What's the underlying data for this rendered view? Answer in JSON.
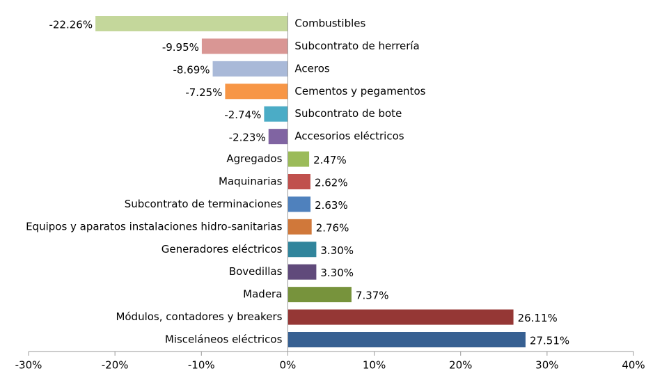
{
  "chart_data": {
    "type": "bar",
    "orientation": "horizontal",
    "categories": [
      "Combustibles",
      "Subcontrato de herrería",
      "Aceros",
      "Cementos y pegamentos",
      "Subcontrato de bote",
      "Accesorios eléctricos",
      "Agregados",
      "Maquinarias",
      "Subcontrato de terminaciones",
      "Equipos y aparatos instalaciones hidro-sanitarias",
      "Generadores eléctricos",
      "Bovedillas",
      "Madera",
      "Módulos, contadores y breakers",
      "Misceláneos eléctricos"
    ],
    "values": [
      -22.26,
      -9.95,
      -8.69,
      -7.25,
      -2.74,
      -2.23,
      2.47,
      2.62,
      2.63,
      2.76,
      3.3,
      3.3,
      7.37,
      26.11,
      27.51
    ],
    "value_labels": [
      "-22.26%",
      "-9.95%",
      "-8.69%",
      "-7.25%",
      "-2.74%",
      "-2.23%",
      "2.47%",
      "2.62%",
      "2.63%",
      "2.76%",
      "3.30%",
      "3.30%",
      "7.37%",
      "26.11%",
      "27.51%"
    ],
    "colors": [
      "#c4d79b",
      "#d99694",
      "#a9b9d8",
      "#f79646",
      "#4bacc6",
      "#8064a2",
      "#9bbb59",
      "#c0504d",
      "#4f81bd",
      "#d0783a",
      "#31859c",
      "#604a7b",
      "#77933c",
      "#953735",
      "#376092"
    ],
    "xlim": [
      -30,
      40
    ],
    "xticks": [
      {
        "value": -30,
        "label": "-30%"
      },
      {
        "value": -20,
        "label": "-20%"
      },
      {
        "value": -10,
        "label": "-10%"
      },
      {
        "value": 0,
        "label": "0%"
      },
      {
        "value": 10,
        "label": "10%"
      },
      {
        "value": 20,
        "label": "20%"
      },
      {
        "value": 30,
        "label": "30%"
      },
      {
        "value": 40,
        "label": "40%"
      }
    ],
    "grid": false
  }
}
